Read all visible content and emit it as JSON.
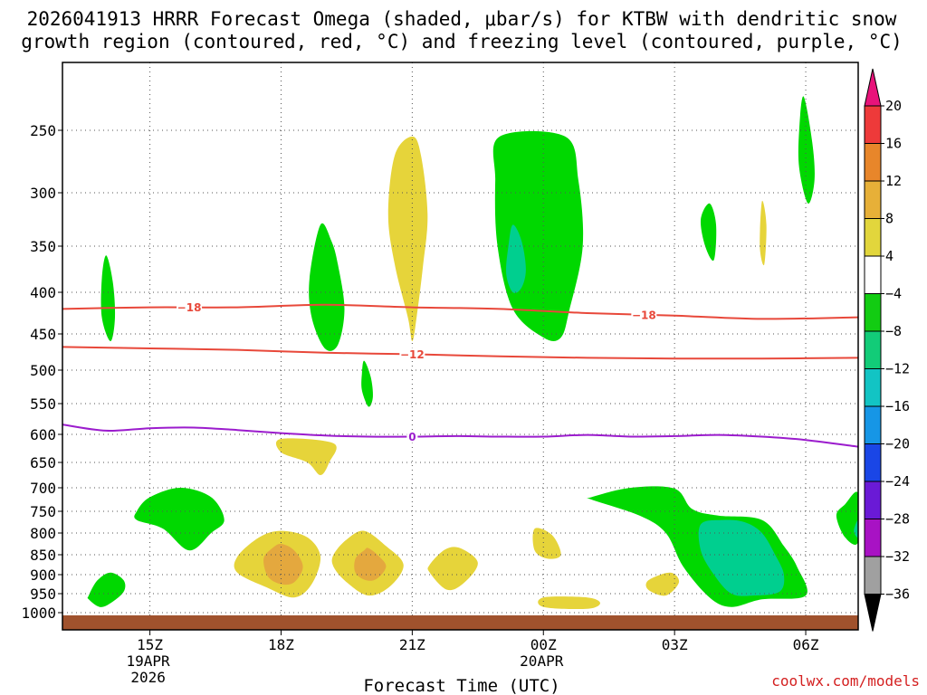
{
  "chart_data": {
    "type": "contour",
    "title_line1": "2026041913 HRRR Forecast Omega (shaded, μbar/s) for KTBW with dendritic snow",
    "title_line2": "growth region (contoured, red, °C) and freezing level (contoured, purple, °C)",
    "xlabel": "Forecast Time (UTC)",
    "credit": "coolwx.com/models",
    "ylabel": "",
    "x_range_hours": [
      13.0,
      31.2
    ],
    "y_range_hpa": [
      1000,
      200
    ],
    "x_ticks": [
      {
        "hour": 15,
        "label": "15Z",
        "sub1": "19APR",
        "sub2": "2026"
      },
      {
        "hour": 18,
        "label": "18Z",
        "sub1": "",
        "sub2": ""
      },
      {
        "hour": 21,
        "label": "21Z",
        "sub1": "",
        "sub2": ""
      },
      {
        "hour": 24,
        "label": "00Z",
        "sub1": "20APR",
        "sub2": ""
      },
      {
        "hour": 27,
        "label": "03Z",
        "sub1": "",
        "sub2": ""
      },
      {
        "hour": 30,
        "label": "06Z",
        "sub1": "",
        "sub2": ""
      }
    ],
    "y_ticks": [
      250,
      300,
      350,
      400,
      450,
      500,
      550,
      600,
      650,
      700,
      750,
      800,
      850,
      900,
      950,
      1000
    ],
    "grid": true,
    "colorbar": {
      "labels": [
        "20",
        "16",
        "12",
        "8",
        "4",
        "-4",
        "-8",
        "-12",
        "-16",
        "-20",
        "-24",
        "-28",
        "-32",
        "-36"
      ],
      "colors": [
        "#e8137a",
        "#ee3a3a",
        "#e8862a",
        "#e7b038",
        "#e2d63c",
        "#ffffff",
        "#12cc12",
        "#12cc78",
        "#12c4c4",
        "#1696e6",
        "#1a46e6",
        "#6a1ad6",
        "#a812c4",
        "#a0a0a0",
        "#000000"
      ]
    },
    "shading_colors": {
      "green": "#00d800",
      "teal": "#00cf8f",
      "yellow": "#e6d43a",
      "orange": "#e4a83e",
      "ground": "#a0522d"
    },
    "contours": [
      {
        "name": "dgz-upper",
        "value": -18,
        "label": "-18",
        "color": "#e8483a",
        "x": [
          13.0,
          15.0,
          17.0,
          19.0,
          21.0,
          23.0,
          25.0,
          27.0,
          29.0,
          31.2
        ],
        "y": [
          420,
          418,
          418,
          415,
          418,
          420,
          425,
          428,
          432,
          430
        ]
      },
      {
        "name": "dgz-lower",
        "value": -12,
        "label": "-12",
        "color": "#e8483a",
        "x": [
          13.0,
          15.0,
          17.0,
          19.0,
          21.0,
          23.0,
          25.0,
          27.0,
          29.0,
          31.2
        ],
        "y": [
          468,
          470,
          472,
          476,
          478,
          481,
          483,
          484,
          484,
          483
        ]
      },
      {
        "name": "freezing-level",
        "value": 0,
        "label": "0",
        "color": "#9b1ccd",
        "x": [
          13.0,
          14.0,
          15.0,
          16.0,
          17.0,
          18.0,
          19.0,
          20.0,
          21.0,
          22.0,
          23.0,
          24.0,
          25.0,
          26.0,
          27.0,
          28.0,
          29.0,
          30.0,
          31.2
        ],
        "y": [
          584,
          594,
          590,
          589,
          593,
          598,
          602,
          604,
          604,
          603,
          604,
          604,
          601,
          604,
          603,
          601,
          604,
          610,
          622
        ]
      }
    ],
    "omega_regions": [
      {
        "name": "green-blob-14z-upper",
        "color": "green",
        "points": [
          [
            14.0,
            360
          ],
          [
            14.15,
            388
          ],
          [
            14.2,
            430
          ],
          [
            14.1,
            460
          ],
          [
            13.9,
            430
          ],
          [
            13.9,
            385
          ]
        ]
      },
      {
        "name": "green-blob-19z",
        "color": "green",
        "points": [
          [
            18.9,
            330
          ],
          [
            19.15,
            345
          ],
          [
            19.3,
            370
          ],
          [
            19.45,
            420
          ],
          [
            19.3,
            465
          ],
          [
            19.0,
            470
          ],
          [
            18.7,
            430
          ],
          [
            18.65,
            385
          ]
        ]
      },
      {
        "name": "yellow-blob-21z",
        "color": "yellow",
        "points": [
          [
            21.0,
            255
          ],
          [
            21.2,
            270
          ],
          [
            21.35,
            320
          ],
          [
            21.25,
            370
          ],
          [
            21.1,
            430
          ],
          [
            21.0,
            460
          ],
          [
            20.9,
            430
          ],
          [
            20.6,
            370
          ],
          [
            20.45,
            320
          ],
          [
            20.6,
            270
          ]
        ]
      },
      {
        "name": "green-blob-23z",
        "color": "green",
        "points": [
          [
            23.0,
            255
          ],
          [
            24.5,
            255
          ],
          [
            24.8,
            290
          ],
          [
            24.9,
            350
          ],
          [
            24.6,
            420
          ],
          [
            24.4,
            455
          ],
          [
            24.0,
            455
          ],
          [
            23.3,
            420
          ],
          [
            22.95,
            350
          ],
          [
            22.9,
            290
          ]
        ]
      },
      {
        "name": "teal-blob-23z",
        "color": "teal",
        "points": [
          [
            23.3,
            330
          ],
          [
            23.5,
            345
          ],
          [
            23.6,
            375
          ],
          [
            23.5,
            395
          ],
          [
            23.3,
            400
          ],
          [
            23.15,
            380
          ],
          [
            23.2,
            350
          ]
        ]
      },
      {
        "name": "green-blob-06z-top",
        "color": "green",
        "points": [
          [
            29.95,
            225
          ],
          [
            30.15,
            260
          ],
          [
            30.2,
            290
          ],
          [
            30.05,
            310
          ],
          [
            29.85,
            280
          ],
          [
            29.85,
            250
          ]
        ]
      },
      {
        "name": "green-blob-04z",
        "color": "green",
        "points": [
          [
            27.8,
            310
          ],
          [
            27.95,
            330
          ],
          [
            27.9,
            365
          ],
          [
            27.7,
            350
          ],
          [
            27.6,
            325
          ]
        ]
      },
      {
        "name": "yellow-blob-05z",
        "color": "yellow",
        "points": [
          [
            29.0,
            308
          ],
          [
            29.1,
            330
          ],
          [
            29.05,
            370
          ],
          [
            28.95,
            350
          ]
        ]
      },
      {
        "name": "green-blob-20z-mid",
        "color": "green",
        "points": [
          [
            19.9,
            487
          ],
          [
            20.05,
            510
          ],
          [
            20.1,
            540
          ],
          [
            20.0,
            555
          ],
          [
            19.85,
            530
          ],
          [
            19.85,
            505
          ]
        ]
      },
      {
        "name": "yellow-blob-19z-mid",
        "color": "yellow",
        "points": [
          [
            18.0,
            608
          ],
          [
            19.2,
            616
          ],
          [
            19.1,
            650
          ],
          [
            18.9,
            675
          ],
          [
            18.6,
            650
          ],
          [
            18.0,
            632
          ]
        ]
      },
      {
        "name": "green-blob-16z-low",
        "color": "green",
        "points": [
          [
            14.7,
            750
          ],
          [
            15.0,
            720
          ],
          [
            15.7,
            700
          ],
          [
            16.4,
            720
          ],
          [
            16.7,
            770
          ],
          [
            16.4,
            800
          ],
          [
            15.9,
            840
          ],
          [
            15.3,
            790
          ],
          [
            14.7,
            770
          ]
        ]
      },
      {
        "name": "green-blob-14z-low",
        "color": "green",
        "points": [
          [
            13.6,
            955
          ],
          [
            13.8,
            915
          ],
          [
            14.1,
            895
          ],
          [
            14.4,
            915
          ],
          [
            14.4,
            945
          ],
          [
            14.1,
            975
          ],
          [
            13.85,
            985
          ],
          [
            13.6,
            965
          ]
        ]
      },
      {
        "name": "yellow-blob-18z-low",
        "color": "yellow",
        "points": [
          [
            17.0,
            855
          ],
          [
            17.5,
            810
          ],
          [
            18.0,
            795
          ],
          [
            18.6,
            810
          ],
          [
            18.9,
            855
          ],
          [
            18.7,
            925
          ],
          [
            18.3,
            960
          ],
          [
            17.7,
            935
          ],
          [
            17.0,
            895
          ]
        ]
      },
      {
        "name": "orange-blob-18z-low",
        "color": "orange",
        "points": [
          [
            17.6,
            860
          ],
          [
            17.8,
            835
          ],
          [
            18.0,
            825
          ],
          [
            18.3,
            840
          ],
          [
            18.5,
            880
          ],
          [
            18.3,
            920
          ],
          [
            18.0,
            925
          ],
          [
            17.7,
            905
          ]
        ]
      },
      {
        "name": "yellow-blob-20z-low",
        "color": "yellow",
        "points": [
          [
            19.2,
            850
          ],
          [
            19.5,
            815
          ],
          [
            19.9,
            795
          ],
          [
            20.4,
            830
          ],
          [
            20.8,
            875
          ],
          [
            20.5,
            930
          ],
          [
            20.0,
            955
          ],
          [
            19.5,
            920
          ],
          [
            19.2,
            880
          ]
        ]
      },
      {
        "name": "orange-blob-20z-low",
        "color": "orange",
        "points": [
          [
            19.7,
            860
          ],
          [
            19.9,
            840
          ],
          [
            20.0,
            835
          ],
          [
            20.25,
            855
          ],
          [
            20.4,
            880
          ],
          [
            20.2,
            910
          ],
          [
            19.95,
            915
          ],
          [
            19.7,
            895
          ]
        ]
      },
      {
        "name": "yellow-blob-22z-low",
        "color": "yellow",
        "points": [
          [
            21.4,
            875
          ],
          [
            21.75,
            838
          ],
          [
            22.1,
            835
          ],
          [
            22.5,
            870
          ],
          [
            22.2,
            920
          ],
          [
            21.8,
            940
          ],
          [
            21.4,
            895
          ]
        ]
      },
      {
        "name": "yellow-blob-00z-low",
        "color": "yellow",
        "points": [
          [
            23.8,
            790
          ],
          [
            24.2,
            805
          ],
          [
            24.4,
            850
          ],
          [
            24.1,
            860
          ],
          [
            23.8,
            840
          ]
        ]
      },
      {
        "name": "yellow-blob-01z-bottom",
        "color": "yellow",
        "points": [
          [
            24.0,
            960
          ],
          [
            25.0,
            960
          ],
          [
            25.3,
            975
          ],
          [
            25.0,
            990
          ],
          [
            24.0,
            985
          ]
        ]
      },
      {
        "name": "green-blob-04z-low",
        "color": "green",
        "points": [
          [
            25.1,
            720
          ],
          [
            26.0,
            700
          ],
          [
            27.0,
            702
          ],
          [
            27.4,
            745
          ],
          [
            28.0,
            760
          ],
          [
            29.0,
            770
          ],
          [
            29.5,
            830
          ],
          [
            29.8,
            880
          ],
          [
            30.0,
            955
          ],
          [
            29.0,
            965
          ],
          [
            28.3,
            985
          ],
          [
            27.8,
            960
          ],
          [
            27.2,
            880
          ],
          [
            26.8,
            800
          ],
          [
            26.2,
            760
          ],
          [
            25.1,
            725
          ]
        ]
      },
      {
        "name": "teal-blob-04z-low",
        "color": "teal",
        "points": [
          [
            27.6,
            780
          ],
          [
            28.1,
            770
          ],
          [
            28.6,
            775
          ],
          [
            29.0,
            800
          ],
          [
            29.3,
            850
          ],
          [
            29.5,
            900
          ],
          [
            29.4,
            945
          ],
          [
            28.8,
            955
          ],
          [
            28.3,
            950
          ],
          [
            27.9,
            900
          ],
          [
            27.6,
            840
          ]
        ]
      },
      {
        "name": "yellow-blob-03z-bottom",
        "color": "yellow",
        "points": [
          [
            26.4,
            915
          ],
          [
            26.9,
            895
          ],
          [
            27.1,
            920
          ],
          [
            26.8,
            955
          ],
          [
            26.4,
            940
          ]
        ]
      },
      {
        "name": "green-blob-07z-right",
        "color": "green",
        "points": [
          [
            31.2,
            712
          ],
          [
            31.2,
            820
          ],
          [
            30.9,
            810
          ],
          [
            30.7,
            760
          ],
          [
            30.9,
            735
          ]
        ]
      },
      {
        "name": "teal-blob-07z-right",
        "color": "teal",
        "points": [
          [
            31.2,
            770
          ],
          [
            31.2,
            810
          ],
          [
            31.1,
            795
          ]
        ]
      }
    ]
  }
}
